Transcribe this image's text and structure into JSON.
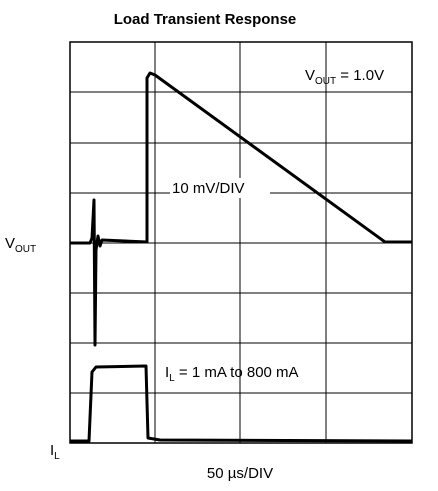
{
  "chart_data": {
    "type": "scope",
    "title": "Load Transient Response",
    "x_label": "50 µs/DIV",
    "vout_note": [
      "V",
      "OUT",
      " = 1.0V"
    ],
    "vout_scale": "10 mV/DIV",
    "vout_channel": [
      "V",
      "OUT"
    ],
    "il_note": [
      "I",
      "L",
      " = 1 mA to 800 mA"
    ],
    "il_channel": [
      "I",
      "L"
    ]
  }
}
